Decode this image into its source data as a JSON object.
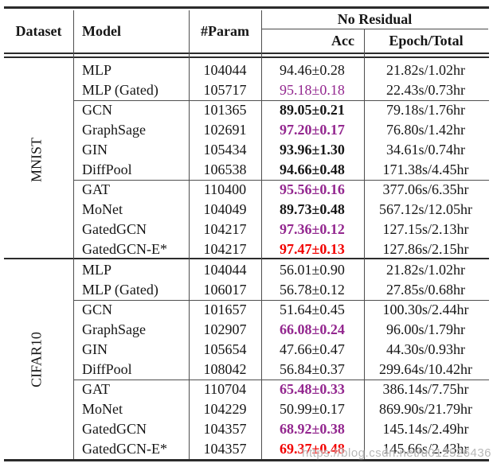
{
  "colors": {
    "ink": "#161616",
    "purple": "#93278F",
    "red": "#F20100"
  },
  "watermark": "https://blog.csdn.net/u012526436",
  "table": {
    "header": {
      "dataset": "Dataset",
      "model": "Model",
      "param": "#Param",
      "group": "No Residual",
      "acc": "Acc",
      "epoch": "Epoch/Total"
    },
    "sections": [
      {
        "dataset": "MNIST",
        "rows": [
          {
            "model": "MLP",
            "param": "104044",
            "acc": "94.46±0.28",
            "style": "plain",
            "time": "21.82s/1.02hr"
          },
          {
            "model": "MLP (Gated)",
            "param": "105717",
            "acc": "95.18±0.18",
            "style": "purple",
            "time": "22.43s/0.73hr"
          },
          {
            "model": "GCN",
            "param": "101365",
            "acc": "89.05±0.21",
            "style": "bold",
            "time": "79.18s/1.76hr"
          },
          {
            "model": "GraphSage",
            "param": "102691",
            "acc": "97.20±0.17",
            "style": "purple-bold",
            "time": "76.80s/1.42hr"
          },
          {
            "model": "GIN",
            "param": "105434",
            "acc": "93.96±1.30",
            "style": "bold",
            "time": "34.61s/0.74hr"
          },
          {
            "model": "DiffPool",
            "param": "106538",
            "acc": "94.66±0.48",
            "style": "bold",
            "time": "171.38s/4.45hr"
          },
          {
            "model": "GAT",
            "param": "110400",
            "acc": "95.56±0.16",
            "style": "purple-bold",
            "time": "377.06s/6.35hr"
          },
          {
            "model": "MoNet",
            "param": "104049",
            "acc": "89.73±0.48",
            "style": "bold",
            "time": "567.12s/12.05hr"
          },
          {
            "model": "GatedGCN",
            "param": "104217",
            "acc": "97.36±0.12",
            "style": "purple-bold",
            "time": "127.15s/2.13hr"
          },
          {
            "model": "GatedGCN-E*",
            "param": "104217",
            "acc": "97.47±0.13",
            "style": "red-bold",
            "time": "127.86s/2.15hr"
          }
        ]
      },
      {
        "dataset": "CIFAR10",
        "rows": [
          {
            "model": "MLP",
            "param": "104044",
            "acc": "56.01±0.90",
            "style": "plain",
            "time": "21.82s/1.02hr"
          },
          {
            "model": "MLP (Gated)",
            "param": "106017",
            "acc": "56.78±0.12",
            "style": "plain",
            "time": "27.85s/0.68hr"
          },
          {
            "model": "GCN",
            "param": "101657",
            "acc": "51.64±0.45",
            "style": "plain",
            "time": "100.30s/2.44hr"
          },
          {
            "model": "GraphSage",
            "param": "102907",
            "acc": "66.08±0.24",
            "style": "purple-bold",
            "time": "96.00s/1.79hr"
          },
          {
            "model": "GIN",
            "param": "105654",
            "acc": "47.66±0.47",
            "style": "plain",
            "time": "44.30s/0.93hr"
          },
          {
            "model": "DiffPool",
            "param": "108042",
            "acc": "56.84±0.37",
            "style": "plain",
            "time": "299.64s/10.42hr"
          },
          {
            "model": "GAT",
            "param": "110704",
            "acc": "65.48±0.33",
            "style": "purple-bold",
            "time": "386.14s/7.75hr"
          },
          {
            "model": "MoNet",
            "param": "104229",
            "acc": "50.99±0.17",
            "style": "plain",
            "time": "869.90s/21.79hr"
          },
          {
            "model": "GatedGCN",
            "param": "104357",
            "acc": "68.92±0.38",
            "style": "purple-bold",
            "time": "145.14s/2.49hr"
          },
          {
            "model": "GatedGCN-E*",
            "param": "104357",
            "acc": "69.37±0.48",
            "style": "red-bold",
            "time": "145.66s/2.43hr"
          }
        ]
      }
    ]
  }
}
